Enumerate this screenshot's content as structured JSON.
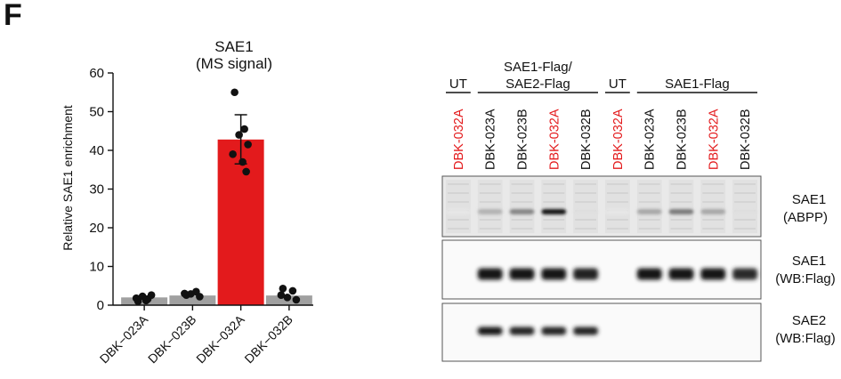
{
  "panel_label": "F",
  "chart_data": [
    {
      "type": "bar",
      "title": "SAE1",
      "subtitle": "(MS signal)",
      "xlabel": "",
      "ylabel": "Relative SAE1 enrichment",
      "ylim": [
        0,
        60
      ],
      "yticks": [
        0,
        10,
        20,
        30,
        40,
        50,
        60
      ],
      "categories": [
        "DBK−023A",
        "DBK−023B",
        "DBK−032A",
        "DBK−032B"
      ],
      "values": [
        2.0,
        2.5,
        42.8,
        2.5
      ],
      "error_upper": [
        null,
        null,
        49.2,
        null
      ],
      "error_lower": [
        null,
        null,
        36.5,
        null
      ],
      "bar_colors": [
        "#a0a0a0",
        "#a0a0a0",
        "#e31a1c",
        "#a0a0a0"
      ],
      "points": [
        [
          1.0,
          1.6,
          2.3,
          2.6,
          1.8,
          1.2
        ],
        [
          2.6,
          3.5,
          2.9,
          2.2,
          3.0
        ],
        [
          55.0,
          45.5,
          44.0,
          41.5,
          39.0,
          37.0,
          34.5
        ],
        [
          4.3,
          3.7,
          2.0,
          1.4,
          2.6
        ]
      ],
      "grid": false
    },
    {
      "type": "table",
      "group_headers": [
        {
          "label": "UT",
          "lanes": [
            0
          ]
        },
        {
          "label": "SAE1-Flag/\nSAE2-Flag",
          "line1": "SAE1-Flag/",
          "line2": "SAE2-Flag",
          "lanes": [
            1,
            2,
            3,
            4
          ]
        },
        {
          "label": "UT",
          "lanes": [
            5
          ]
        },
        {
          "label": "SAE1-Flag",
          "lanes": [
            6,
            7,
            8,
            9
          ]
        }
      ],
      "lanes": [
        {
          "label": "DBK-032A",
          "color": "#e31a1c"
        },
        {
          "label": "DBK-023A",
          "color": "#111111"
        },
        {
          "label": "DBK-023B",
          "color": "#111111"
        },
        {
          "label": "DBK-032A",
          "color": "#e31a1c"
        },
        {
          "label": "DBK-032B",
          "color": "#111111"
        },
        {
          "label": "DBK-032A",
          "color": "#e31a1c"
        },
        {
          "label": "DBK-023A",
          "color": "#111111"
        },
        {
          "label": "DBK-023B",
          "color": "#111111"
        },
        {
          "label": "DBK-032A",
          "color": "#e31a1c"
        },
        {
          "label": "DBK-032B",
          "color": "#111111"
        }
      ],
      "blots": [
        {
          "name": "SAE1",
          "name2": "(ABPP)",
          "band_intensity": [
            0.02,
            0.25,
            0.45,
            0.95,
            0.05,
            0.02,
            0.3,
            0.5,
            0.3,
            0.05
          ]
        },
        {
          "name": "SAE1",
          "name2": "(WB:Flag)",
          "band_intensity": [
            0.0,
            0.95,
            0.95,
            0.95,
            0.9,
            0.0,
            0.95,
            0.95,
            0.95,
            0.85
          ]
        },
        {
          "name": "SAE2",
          "name2": "(WB:Flag)",
          "band_intensity": [
            0.0,
            0.95,
            0.9,
            0.9,
            0.9,
            0.0,
            0.0,
            0.0,
            0.0,
            0.0
          ]
        }
      ]
    }
  ]
}
